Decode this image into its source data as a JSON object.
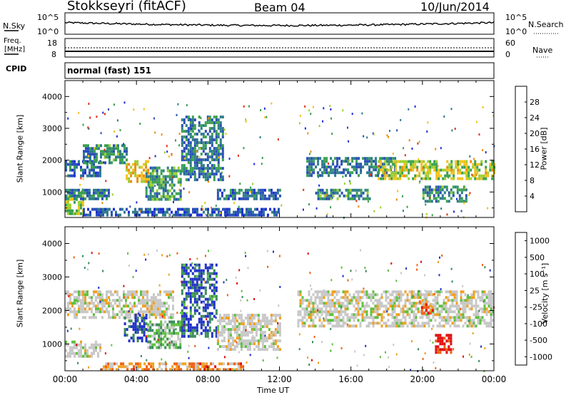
{
  "header": {
    "station": "Stokkseyri (fitACF)",
    "beam": "Beam 04",
    "date": "10/Jun/2014"
  },
  "noise_panel": {
    "left_label": "N.Sky",
    "left_ticks": [
      "10^5",
      "10^0"
    ],
    "right_ticks": [
      "10^5",
      "10^0"
    ],
    "right_label": "N.Search"
  },
  "freq_panel": {
    "left_label_1": "Freq.",
    "left_label_2": "[MHz]",
    "left_ticks": [
      "18",
      "8"
    ],
    "right_ticks": [
      "60",
      "0"
    ],
    "right_label": "Nave"
  },
  "cpid_panel": {
    "label": "CPID",
    "mode": "normal (fast) 151"
  },
  "chart_data": [
    {
      "type": "heatmap",
      "name": "power",
      "ylabel": "Slant Range [km]",
      "yticks": [
        "1000",
        "2000",
        "3000",
        "4000"
      ],
      "ylim": [
        200,
        4500
      ],
      "xlim": [
        0,
        24
      ],
      "colorbar_label": "Power [dB]",
      "colorbar_ticks": [
        "4",
        "8",
        "12",
        "16",
        "20",
        "24",
        "28"
      ],
      "colorscale": [
        "#1f2fd6",
        "#2a4fb8",
        "#2f7c8a",
        "#3aa050",
        "#9ccf32",
        "#f2c21a",
        "#f28a10",
        "#e03010"
      ],
      "regions": [
        {
          "t": [
            0.0,
            2.0
          ],
          "r": [
            1500,
            2000
          ],
          "level": 0.25
        },
        {
          "t": [
            1.0,
            3.5
          ],
          "r": [
            1900,
            2500
          ],
          "level": 0.35
        },
        {
          "t": [
            3.4,
            4.6
          ],
          "r": [
            1300,
            2000
          ],
          "level": 0.7
        },
        {
          "t": [
            4.5,
            6.5
          ],
          "r": [
            800,
            1800
          ],
          "level": 0.4
        },
        {
          "t": [
            6.5,
            8.8
          ],
          "r": [
            1400,
            3400
          ],
          "level": 0.3
        },
        {
          "t": [
            0.0,
            1.0
          ],
          "r": [
            300,
            900
          ],
          "level": 0.55
        },
        {
          "t": [
            1.0,
            12.0
          ],
          "r": [
            300,
            500
          ],
          "level": 0.2
        },
        {
          "t": [
            0.0,
            2.5
          ],
          "r": [
            800,
            1100
          ],
          "level": 0.3
        },
        {
          "t": [
            8.5,
            12.0
          ],
          "r": [
            800,
            1100
          ],
          "level": 0.25
        },
        {
          "t": [
            13.5,
            18.5
          ],
          "r": [
            1500,
            2100
          ],
          "level": 0.3
        },
        {
          "t": [
            14.0,
            17.0
          ],
          "r": [
            800,
            1100
          ],
          "level": 0.35
        },
        {
          "t": [
            17.5,
            24.0
          ],
          "r": [
            1400,
            2000
          ],
          "level": 0.6
        },
        {
          "t": [
            20.0,
            22.5
          ],
          "r": [
            700,
            1200
          ],
          "level": 0.35
        }
      ]
    },
    {
      "type": "heatmap",
      "name": "velocity",
      "ylabel": "Slant Range [km]",
      "yticks": [
        "1000",
        "2000",
        "3000",
        "4000"
      ],
      "ylim": [
        200,
        4500
      ],
      "xlim": [
        0,
        24
      ],
      "xticks": [
        "00:00",
        "04:00",
        "08:00",
        "12:00",
        "16:00",
        "20:00",
        "00:00"
      ],
      "xlabel": "Time UT",
      "colorbar_label": "Velocity [m s⁻¹]",
      "colorbar_ticks": [
        "1000",
        "500",
        "100",
        "25",
        "-25",
        "-100",
        "-500",
        "-1000"
      ],
      "colorscale": [
        "#2030c8",
        "#3a8a5a",
        "#5ec040",
        "#c8c8c8",
        "#c8c8c8",
        "#f0a020",
        "#f06010",
        "#e01010"
      ],
      "regions": [
        {
          "t": [
            0.0,
            6.0
          ],
          "r": [
            1800,
            2600
          ],
          "level": 0.5
        },
        {
          "t": [
            3.3,
            4.6
          ],
          "r": [
            1100,
            1900
          ],
          "level": 0.05
        },
        {
          "t": [
            6.5,
            8.5
          ],
          "r": [
            1200,
            3400
          ],
          "level": 0.1
        },
        {
          "t": [
            4.6,
            6.5
          ],
          "r": [
            900,
            1700
          ],
          "level": 0.3
        },
        {
          "t": [
            8.5,
            12.0
          ],
          "r": [
            800,
            1900
          ],
          "level": 0.5
        },
        {
          "t": [
            13.0,
            24.0
          ],
          "r": [
            1500,
            2600
          ],
          "level": 0.5
        },
        {
          "t": [
            19.8,
            20.6
          ],
          "r": [
            1900,
            2300
          ],
          "level": 0.75
        },
        {
          "t": [
            20.7,
            21.6
          ],
          "r": [
            750,
            1300
          ],
          "level": 0.95
        },
        {
          "t": [
            0.0,
            2.0
          ],
          "r": [
            600,
            1100
          ],
          "level": 0.5
        },
        {
          "t": [
            2.0,
            10.0
          ],
          "r": [
            250,
            450
          ],
          "level": 0.72
        }
      ]
    }
  ]
}
